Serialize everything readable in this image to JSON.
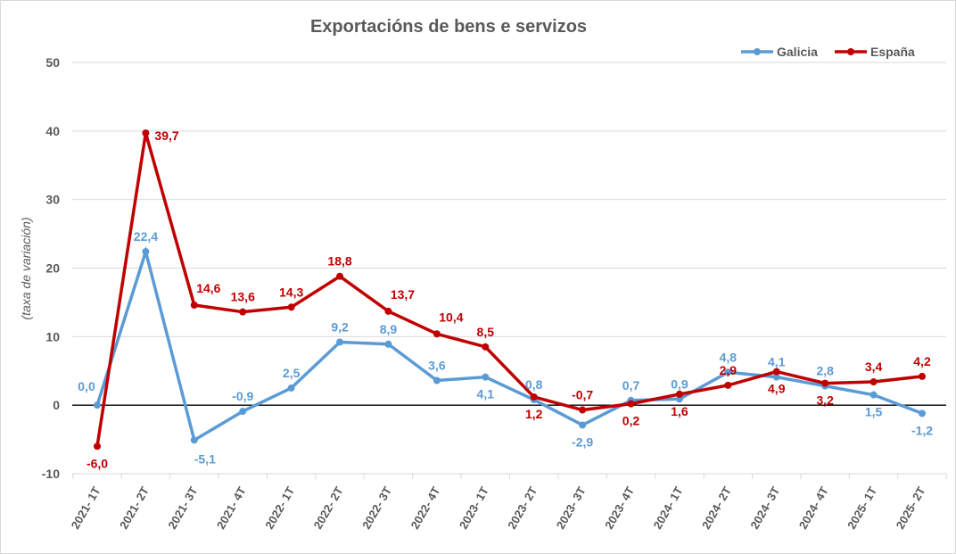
{
  "chart_data": {
    "type": "line",
    "title": "Exportacións de bens e servizos",
    "ylabel": "(taxa de variación)",
    "xlabel": "",
    "ylim": [
      -10,
      50
    ],
    "yticks": [
      "-10",
      "0",
      "10",
      "20",
      "30",
      "40",
      "50"
    ],
    "grid": true,
    "legend_position": "top-right",
    "categories": [
      "2021- 1T",
      "2021- 2T",
      "2021- 3T",
      "2021- 4T",
      "2022- 1T",
      "2022- 2T",
      "2022- 3T",
      "2022- 4T",
      "2023- 1T",
      "2023- 2T",
      "2023- 3T",
      "2023- 4T",
      "2024- 1T",
      "2024- 2T",
      "2024- 3T",
      "2024- 4T",
      "2025- 1T",
      "2025- 2T"
    ],
    "series": [
      {
        "name": "Galicia",
        "color": "#5b9bd5",
        "values": [
          0.0,
          22.4,
          -5.1,
          -0.9,
          2.5,
          9.2,
          8.9,
          3.6,
          4.1,
          0.8,
          -2.9,
          0.7,
          0.9,
          4.8,
          4.1,
          2.8,
          1.5,
          -1.2
        ],
        "labels": [
          "0,0",
          "22,4",
          "-5,1",
          "-0,9",
          "2,5",
          "9,2",
          "8,9",
          "3,6",
          "4,1",
          "0,8",
          "-2,9",
          "0,7",
          "0,9",
          "4,8",
          "4,1",
          "2,8",
          "1,5",
          "-1,2"
        ]
      },
      {
        "name": "España",
        "color": "#c00000",
        "values": [
          -6.0,
          39.7,
          14.6,
          13.6,
          14.3,
          18.8,
          13.7,
          10.4,
          8.5,
          1.2,
          -0.7,
          0.2,
          1.6,
          2.9,
          4.9,
          3.2,
          3.4,
          4.2
        ],
        "labels": [
          "-6,0",
          "39,7",
          "14,6",
          "13,6",
          "14,3",
          "18,8",
          "13,7",
          "10,4",
          "8,5",
          "1,2",
          "-0,7",
          "0,2",
          "1,6",
          "2,9",
          "4,9",
          "3,2",
          "3,4",
          "4,2"
        ]
      }
    ]
  }
}
